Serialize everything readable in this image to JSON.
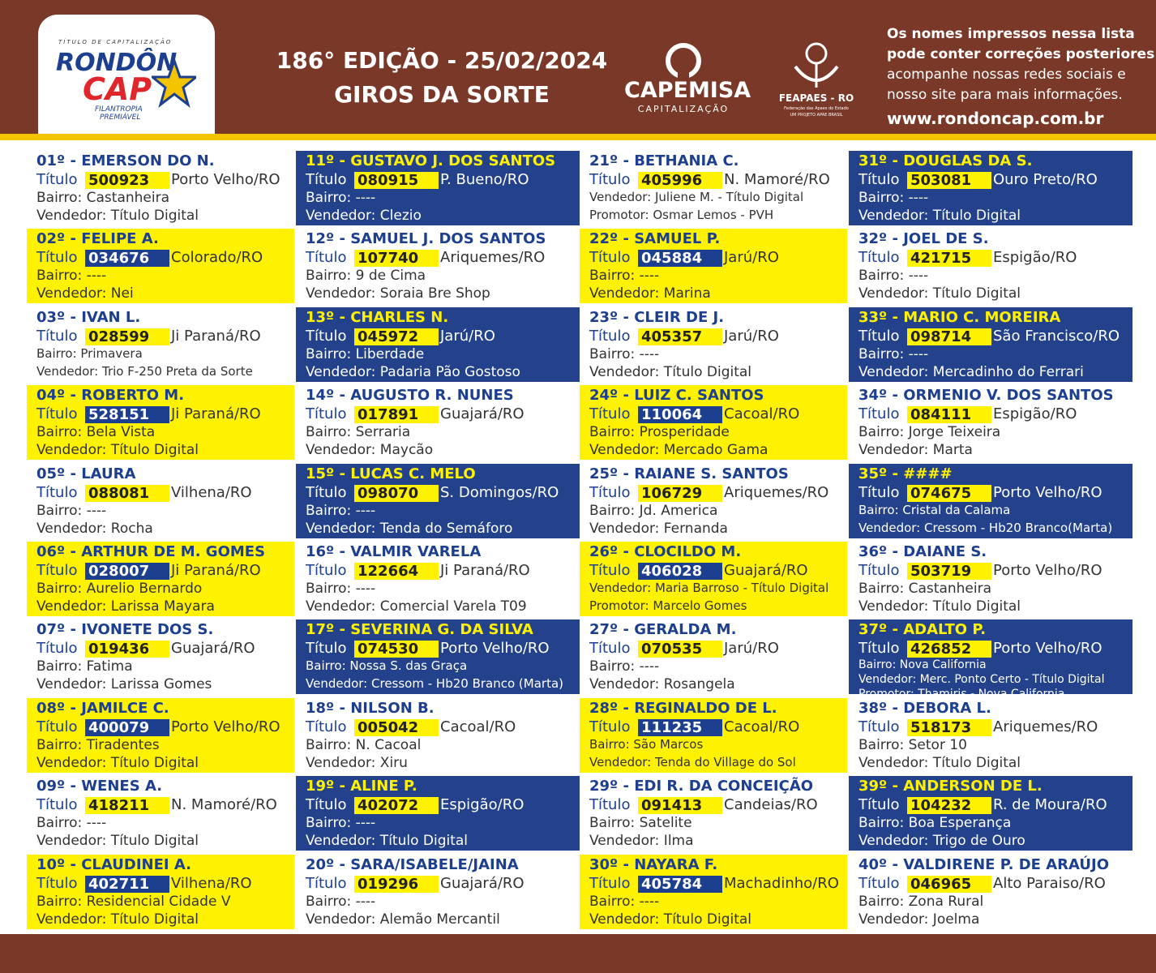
{
  "header": {
    "logo": {
      "tagline": "TÍTULO DE CAPITALIZAÇÃO",
      "brand_a": "RONDÔN",
      "brand_b": "CAP",
      "slogan_1": "FILANTROPIA",
      "slogan_2": "PREMIÁVEL"
    },
    "title_1": "186° EDIÇÃO - 25/02/2024",
    "title_2": "GIROS DA SORTE",
    "capemisa": "CAPEMISA",
    "capemisa_sub": "CAPITALIZAÇÃO",
    "feapaes": "FEAPAES - RO",
    "feapaes_sub_1": "Federação das Apaes do Estado",
    "feapaes_sub_2": "UM PROJETO APAE BRASIL",
    "notice": [
      "Os nomes impressos nessa lista",
      "pode conter correções posteriores",
      "acompanhe nossas redes sociais e",
      "nosso site para mais informações."
    ],
    "url": "www.rondoncap.com.br"
  },
  "winners": [
    {
      "heading": "01º - EMERSON DO N.",
      "label": "Título",
      "number": "500923",
      "city": "Porto Velho/RO",
      "lines": [
        "Bairro: Castanheira",
        "Vendedor: Título Digital"
      ]
    },
    {
      "heading": "02º - FELIPE A.",
      "label": "Título",
      "number": "034676",
      "city": "Colorado/RO",
      "lines": [
        "Bairro: ----",
        "Vendedor: Nei"
      ]
    },
    {
      "heading": "03º - IVAN L.",
      "label": "Título",
      "number": "028599",
      "city": "Ji Paraná/RO",
      "lines": [
        "Bairro: Primavera",
        "Vendedor: Trio F-250 Preta da Sorte"
      ]
    },
    {
      "heading": "04º - ROBERTO M.",
      "label": "Título",
      "number": "528151",
      "city": "Ji Paraná/RO",
      "lines": [
        "Bairro: Bela Vista",
        "Vendedor: Título Digital"
      ]
    },
    {
      "heading": "05º - LAURA",
      "label": "Título",
      "number": "088081",
      "city": "Vilhena/RO",
      "lines": [
        "Bairro: ----",
        "Vendedor: Rocha"
      ]
    },
    {
      "heading": "06º - ARTHUR DE M. GOMES",
      "label": "Título",
      "number": "028007",
      "city": "Ji Paraná/RO",
      "lines": [
        "Bairro: Aurelio Bernardo",
        "Vendedor: Larissa Mayara"
      ]
    },
    {
      "heading": "07º - IVONETE DOS S.",
      "label": "Título",
      "number": "019436",
      "city": "Guajará/RO",
      "lines": [
        "Bairro: Fatima",
        "Vendedor: Larissa Gomes"
      ]
    },
    {
      "heading": "08º - JAMILCE C.",
      "label": "Título",
      "number": "400079",
      "city": "Porto Velho/RO",
      "lines": [
        "Bairro: Tiradentes",
        "Vendedor: Título Digital"
      ]
    },
    {
      "heading": "09º - WENES A.",
      "label": "Título",
      "number": "418211",
      "city": "N. Mamoré/RO",
      "lines": [
        "Bairro: ----",
        "Vendedor: Título Digital"
      ]
    },
    {
      "heading": "10º - CLAUDINEI A.",
      "label": "Título",
      "number": "402711",
      "city": "Vilhena/RO",
      "lines": [
        "Bairro: Residencial Cidade V",
        "Vendedor: Título Digital"
      ]
    },
    {
      "heading": "11º - GUSTAVO J. DOS SANTOS",
      "label": "Título",
      "number": "080915",
      "city": "P. Bueno/RO",
      "lines": [
        "Bairro: ----",
        "Vendedor: Clezio"
      ]
    },
    {
      "heading": "12º - SAMUEL J. DOS SANTOS",
      "label": "Título",
      "number": "107740",
      "city": "Ariquemes/RO",
      "lines": [
        "Bairro: 9 de Cima",
        "Vendedor: Soraia Bre Shop"
      ]
    },
    {
      "heading": "13º - CHARLES N.",
      "label": "Título",
      "number": "045972",
      "city": "Jarú/RO",
      "lines": [
        "Bairro: Liberdade",
        "Vendedor: Padaria Pão Gostoso"
      ]
    },
    {
      "heading": "14º - AUGUSTO R. NUNES",
      "label": "Título",
      "number": "017891",
      "city": "Guajará/RO",
      "lines": [
        "Bairro: Serraria",
        "Vendedor: Maycão"
      ]
    },
    {
      "heading": "15º - LUCAS C. MELO",
      "label": "Título",
      "number": "098070",
      "city": "S. Domingos/RO",
      "lines": [
        "Bairro: ----",
        "Vendedor: Tenda do Semáforo"
      ]
    },
    {
      "heading": "16º - VALMIR VARELA",
      "label": "Título",
      "number": "122664",
      "city": "Ji Paraná/RO",
      "lines": [
        "Bairro: ----",
        "Vendedor: Comercial Varela T09"
      ]
    },
    {
      "heading": "17º - SEVERINA G. DA SILVA",
      "label": "Título",
      "number": "074530",
      "city": "Porto Velho/RO",
      "lines": [
        "Bairro: Nossa S. das Graça",
        "Vendedor: Cressom - Hb20 Branco (Marta)"
      ]
    },
    {
      "heading": "18º - NILSON B.",
      "label": "Título",
      "number": "005042",
      "city": "Cacoal/RO",
      "lines": [
        "Bairro: N. Cacoal",
        "Vendedor: Xiru"
      ]
    },
    {
      "heading": "19º - ALINE P.",
      "label": "Título",
      "number": "402072",
      "city": "Espigão/RO",
      "lines": [
        "Bairro: ----",
        "Vendedor: Título Digital"
      ]
    },
    {
      "heading": "20º - SARA/ISABELE/JAINA",
      "label": "Título",
      "number": "019296",
      "city": "Guajará/RO",
      "lines": [
        "Bairro: ----",
        "Vendedor: Alemão Mercantil"
      ]
    },
    {
      "heading": "21º - BETHANIA C.",
      "label": "Título",
      "number": "405996",
      "city": "N. Mamoré/RO",
      "lines": [
        "Vendedor: Juliene M. - Título Digital",
        "Promotor: Osmar Lemos - PVH"
      ]
    },
    {
      "heading": "22º - SAMUEL P.",
      "label": "Título",
      "number": "045884",
      "city": "Jarú/RO",
      "lines": [
        "Bairro: ----",
        "Vendedor: Marina"
      ]
    },
    {
      "heading": "23º - CLEIR DE J.",
      "label": "Título",
      "number": "405357",
      "city": "Jarú/RO",
      "lines": [
        "Bairro: ----",
        "Vendedor: Título Digital"
      ]
    },
    {
      "heading": "24º - LUIZ C. SANTOS",
      "label": "Título",
      "number": "110064",
      "city": "Cacoal/RO",
      "lines": [
        "Bairro: Prosperidade",
        "Vendedor: Mercado Gama"
      ]
    },
    {
      "heading": "25º - RAIANE S. SANTOS",
      "label": "Título",
      "number": "106729",
      "city": "Ariquemes/RO",
      "lines": [
        "Bairro: Jd. America",
        "Vendedor: Fernanda"
      ]
    },
    {
      "heading": "26º - CLOCILDO M.",
      "label": "Título",
      "number": "406028",
      "city": "Guajará/RO",
      "lines": [
        "Vendedor: Maria Barroso - Título Digital",
        "Promotor: Marcelo Gomes"
      ]
    },
    {
      "heading": "27º - GERALDA M.",
      "label": "Título",
      "number": "070535",
      "city": "Jarú/RO",
      "lines": [
        "Bairro: ----",
        "Vendedor: Rosangela"
      ]
    },
    {
      "heading": "28º - REGINALDO DE L.",
      "label": "Título",
      "number": "111235",
      "city": "Cacoal/RO",
      "lines": [
        "Bairro: São Marcos",
        "Vendedor: Tenda do Village do Sol"
      ]
    },
    {
      "heading": "29º - EDI R. DA CONCEIÇÃO",
      "label": "Título",
      "number": "091413",
      "city": "Candeias/RO",
      "lines": [
        "Bairro: Satelite",
        "Vendedor: Ilma"
      ]
    },
    {
      "heading": "30º - NAYARA F.",
      "label": "Título",
      "number": "405784",
      "city": "Machadinho/RO",
      "lines": [
        "Bairro: ----",
        "Vendedor: Título Digital"
      ]
    },
    {
      "heading": "31º - DOUGLAS DA S.",
      "label": "Título",
      "number": "503081",
      "city": "Ouro Preto/RO",
      "lines": [
        "Bairro: ----",
        "Vendedor: Título Digital"
      ]
    },
    {
      "heading": "32º - JOEL DE S.",
      "label": "Título",
      "number": "421715",
      "city": "Espigão/RO",
      "lines": [
        "Bairro: ----",
        "Vendedor: Título Digital"
      ]
    },
    {
      "heading": "33º - MARIO C. MOREIRA",
      "label": "Título",
      "number": "098714",
      "city": "São Francisco/RO",
      "lines": [
        "Bairro: ----",
        "Vendedor: Mercadinho do Ferrari"
      ]
    },
    {
      "heading": "34º - ORMENIO V. DOS SANTOS",
      "label": "Título",
      "number": "084111",
      "city": "Espigão/RO",
      "lines": [
        "Bairro: Jorge Teixeira",
        "Vendedor: Marta"
      ]
    },
    {
      "heading": "35º - ####",
      "label": "Título",
      "number": "074675",
      "city": "Porto Velho/RO",
      "lines": [
        "Bairro: Cristal da Calama",
        "Vendedor: Cressom - Hb20 Branco(Marta)"
      ]
    },
    {
      "heading": "36º - DAIANE S.",
      "label": "Título",
      "number": "503719",
      "city": "Porto Velho/RO",
      "lines": [
        "Bairro: Castanheira",
        "Vendedor: Título Digital"
      ]
    },
    {
      "heading": "37º - ADALTO P.",
      "label": "Título",
      "number": "426852",
      "city": "Porto Velho/RO",
      "lines": [
        "Bairro: Nova California",
        "Vendedor: Merc. Ponto Certo - Título Digital",
        "Promotor: Thamiris - Nova California"
      ]
    },
    {
      "heading": "38º - DEBORA L.",
      "label": "Título",
      "number": "518173",
      "city": "Ariquemes/RO",
      "lines": [
        "Bairro: Setor 10",
        "Vendedor: Título Digital"
      ]
    },
    {
      "heading": "39º - ANDERSON DE L.",
      "label": "Título",
      "number": "104232",
      "city": "R. de Moura/RO",
      "lines": [
        "Bairro: Boa Esperança",
        "Vendedor: Trigo de Ouro"
      ]
    },
    {
      "heading": "40º - VALDIRENE P. DE ARAÚJO",
      "label": "Título",
      "number": "046965",
      "city": "Alto Paraiso/RO",
      "lines": [
        "Bairro: Zona Rural",
        "Vendedor: Joelma"
      ]
    }
  ]
}
